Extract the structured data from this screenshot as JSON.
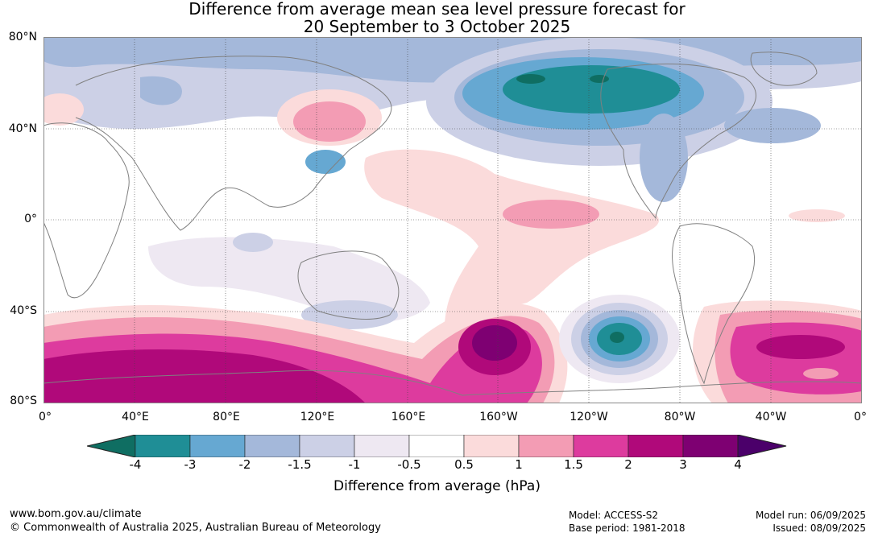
{
  "title": {
    "line1": "Difference from average mean sea level pressure forecast for",
    "line2": "20 September to 3 October 2025"
  },
  "axes": {
    "lat_labels": [
      "80°N",
      "40°N",
      "0°",
      "40°S",
      "80°S"
    ],
    "lon_labels": [
      "0°",
      "40°E",
      "80°E",
      "120°E",
      "160°E",
      "160°W",
      "120°W",
      "80°W",
      "40°W",
      "0°"
    ]
  },
  "colorbar": {
    "title": "Difference from average (hPa)",
    "tick_labels": [
      "-4",
      "-3",
      "-2",
      "-1.5",
      "-1",
      "-0.5",
      "0.5",
      "1",
      "1.5",
      "2",
      "3",
      "4"
    ],
    "colors": [
      "#0f6e62",
      "#1f8e96",
      "#66a8d2",
      "#a4b8da",
      "#ccd0e6",
      "#eee8f2",
      "#ffffff",
      "#fbdbdb",
      "#f39cb4",
      "#dd3b9e",
      "#b0097a",
      "#7e0072",
      "#4b006a"
    ]
  },
  "footer": {
    "url": "www.bom.gov.au/climate",
    "copyright": "© Commonwealth of Australia 2025, Australian Bureau of Meteorology",
    "model": "Model: ACCESS-S2",
    "base_period": "Base period: 1981-2018",
    "model_run": "Model run: 06/09/2025",
    "issued": "Issued: 08/09/2025"
  },
  "regions": [
    {
      "name": "north-pacific-low",
      "level": -3
    },
    {
      "name": "north-pacific-low-core",
      "level": -4
    },
    {
      "name": "southeast-pacific-low",
      "level": -3
    },
    {
      "name": "southeast-pacific-low-core",
      "level": -4
    },
    {
      "name": "southern-ocean-high",
      "level": 2
    },
    {
      "name": "south-pacific-high-core",
      "level": 3
    },
    {
      "name": "south-atlantic-high",
      "level": 2
    },
    {
      "name": "asia-high",
      "level": 1
    }
  ]
}
